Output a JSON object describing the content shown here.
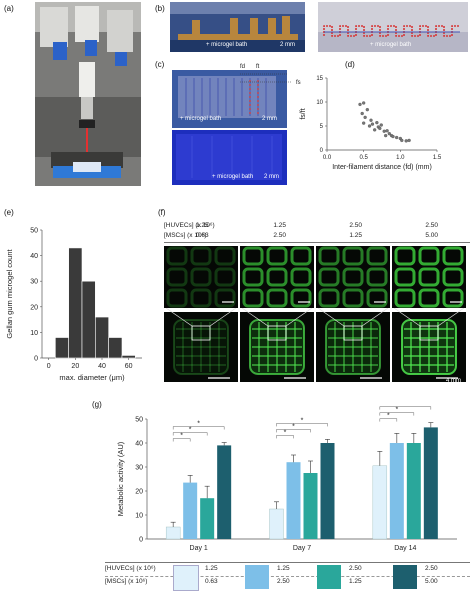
{
  "panels": {
    "a": "(a)",
    "b": "(b)",
    "c": "(c)",
    "d": "(d)",
    "e": "(e)",
    "f": "(f)",
    "g": "(g)"
  },
  "b": {
    "scale_left": "2 mm",
    "bath_left": "+ microgel bath",
    "bath_right": "+ microgel bath"
  },
  "c": {
    "fd": "fd",
    "ft": "ft",
    "fs": "fs",
    "scale_top": "2 mm",
    "bath_top": "+ microgel bath",
    "bath_bottom": "+ microgel bath",
    "scale_bottom": "2 mm"
  },
  "f": {
    "huvec_label": "[HUVECs] (x 10⁶)",
    "msc_label": "[MSCs] (x 10⁶)",
    "huvec_values": [
      "1.25",
      "1.25",
      "2.50",
      "2.50"
    ],
    "msc_values": [
      "0.63",
      "2.50",
      "1.25",
      "5.00"
    ],
    "scale_bottom": "4 mm"
  },
  "g": {
    "huvec_label": "[HUVECs] (x 10⁶)",
    "msc_label": "[MSCs] (x 10⁶)",
    "legend": [
      {
        "huvec": "1.25",
        "msc": "0.63",
        "color": "#dff1fb"
      },
      {
        "huvec": "1.25",
        "msc": "2.50",
        "color": "#7dbfe8"
      },
      {
        "huvec": "2.50",
        "msc": "1.25",
        "color": "#2aa79b"
      },
      {
        "huvec": "2.50",
        "msc": "5.00",
        "color": "#1d5f6e"
      }
    ]
  },
  "chart_data": [
    {
      "id": "d",
      "type": "scatter",
      "xlabel": "Inter-filament distance (fd) (mm)",
      "ylabel": "fs/ft",
      "xlim": [
        0.0,
        1.5
      ],
      "ylim": [
        0,
        15
      ],
      "xticks": [
        "0.0",
        "0.5",
        "1.0",
        "1.5"
      ],
      "yticks": [
        "0",
        "5",
        "10",
        "15"
      ],
      "points": [
        [
          0.45,
          9.5
        ],
        [
          0.5,
          9.8
        ],
        [
          0.48,
          7.6
        ],
        [
          0.55,
          8.4
        ],
        [
          0.52,
          6.8
        ],
        [
          0.6,
          6.2
        ],
        [
          0.62,
          5.4
        ],
        [
          0.58,
          5.0
        ],
        [
          0.68,
          5.7
        ],
        [
          0.7,
          4.8
        ],
        [
          0.72,
          4.5
        ],
        [
          0.74,
          5.2
        ],
        [
          0.78,
          3.9
        ],
        [
          0.82,
          4.0
        ],
        [
          0.85,
          3.4
        ],
        [
          0.88,
          3.0
        ],
        [
          0.9,
          2.8
        ],
        [
          0.95,
          2.6
        ],
        [
          1.0,
          2.4
        ],
        [
          1.02,
          2.0
        ],
        [
          1.08,
          1.9
        ],
        [
          1.12,
          2.0
        ],
        [
          0.5,
          5.6
        ],
        [
          0.65,
          4.2
        ],
        [
          0.8,
          3.0
        ]
      ]
    },
    {
      "id": "e",
      "type": "bar",
      "xlabel": "max. diameter (μm)",
      "ylabel": "Gellan gum microgel count",
      "xlim": [
        -5,
        70
      ],
      "ylim": [
        0,
        50
      ],
      "xticks": [
        "0",
        "20",
        "40",
        "60"
      ],
      "yticks": [
        "0",
        "10",
        "20",
        "30",
        "40",
        "50"
      ],
      "bin_edges": [
        5,
        15,
        25,
        35,
        45,
        55,
        65
      ],
      "values": [
        8,
        43,
        30,
        16,
        8,
        1
      ]
    },
    {
      "id": "g",
      "type": "bar",
      "ylabel": "Metabolic activity (AU)",
      "ylim": [
        0,
        50
      ],
      "yticks": [
        "0",
        "10",
        "20",
        "30",
        "40",
        "50"
      ],
      "categories": [
        "Day 1",
        "Day 7",
        "Day 14"
      ],
      "series": [
        {
          "values": [
            5,
            12.5,
            30.5
          ],
          "errors": [
            2,
            3,
            6
          ],
          "color": "#dff1fb"
        },
        {
          "values": [
            23.5,
            32,
            40
          ],
          "errors": [
            3,
            3,
            4
          ],
          "color": "#7dbfe8"
        },
        {
          "values": [
            17,
            27.5,
            40
          ],
          "errors": [
            5,
            5,
            4
          ],
          "color": "#2aa79b"
        },
        {
          "values": [
            39,
            40,
            46.5
          ],
          "errors": [
            1.2,
            1.5,
            2
          ],
          "color": "#1d5f6e"
        }
      ],
      "significance": "*"
    }
  ]
}
